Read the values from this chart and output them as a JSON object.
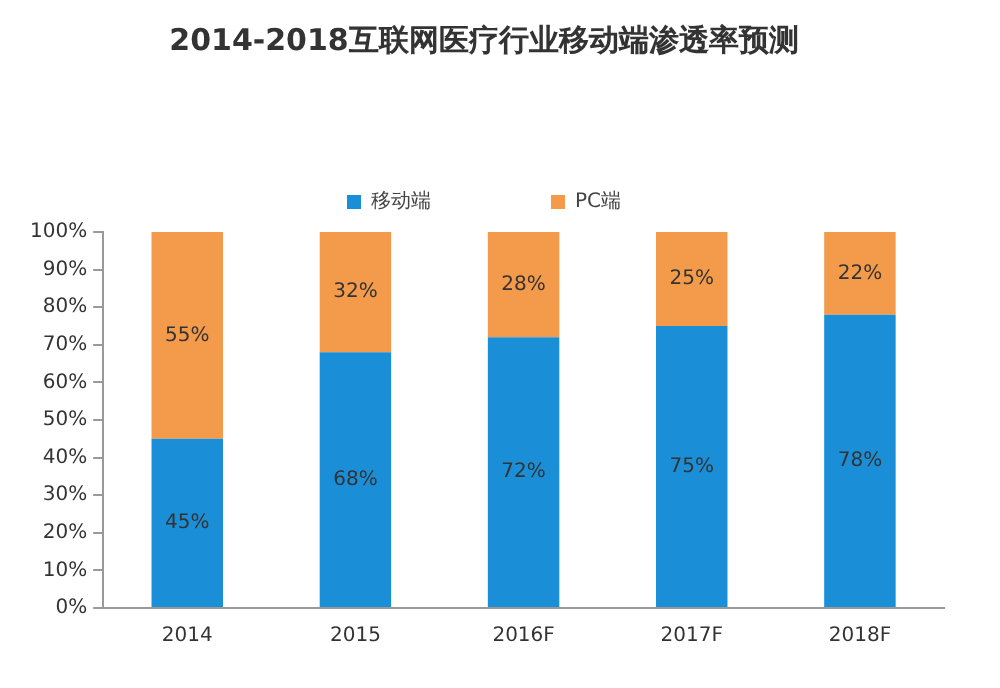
{
  "chart_data": {
    "type": "bar",
    "title": "2014-2018互联网医疗行业移动端渗透率预测",
    "categories": [
      "2014",
      "2015",
      "2016F",
      "2017F",
      "2018F"
    ],
    "stacked": true,
    "legend": "top",
    "grid": false,
    "series": [
      {
        "name": "移动端",
        "color": "#1a8fd8",
        "values": [
          45,
          68,
          72,
          75,
          78
        ],
        "value_labels": [
          "45%",
          "68%",
          "72%",
          "75%",
          "78%"
        ]
      },
      {
        "name": "PC端",
        "color": "#f39a4b",
        "values": [
          55,
          32,
          28,
          25,
          22
        ],
        "value_labels": [
          "55%",
          "32%",
          "28%",
          "25%",
          "22%"
        ]
      }
    ],
    "ylim": [
      0,
      100
    ],
    "yticks": [
      {
        "value": 0,
        "label": "0%"
      },
      {
        "value": 10,
        "label": "10%"
      },
      {
        "value": 20,
        "label": "20%"
      },
      {
        "value": 30,
        "label": "30%"
      },
      {
        "value": 40,
        "label": "40%"
      },
      {
        "value": 50,
        "label": "50%"
      },
      {
        "value": 60,
        "label": "60%"
      },
      {
        "value": 70,
        "label": "70%"
      },
      {
        "value": 80,
        "label": "80%"
      },
      {
        "value": 90,
        "label": "90%"
      },
      {
        "value": 100,
        "label": "100%"
      }
    ]
  }
}
